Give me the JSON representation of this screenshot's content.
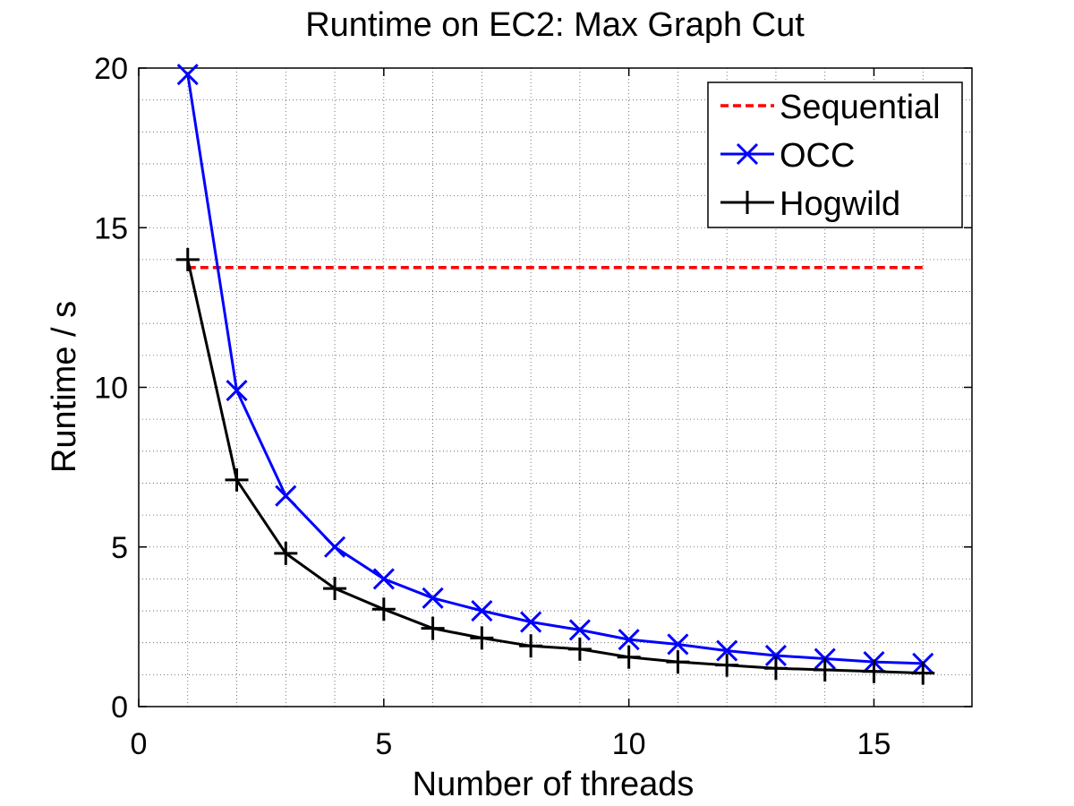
{
  "chart_data": {
    "type": "line",
    "title": "Runtime on EC2: Max Graph Cut",
    "xlabel": "Number of threads",
    "ylabel": "Runtime / s",
    "xlim": [
      0,
      17
    ],
    "ylim": [
      0,
      20
    ],
    "xticks": [
      0,
      5,
      10,
      15
    ],
    "yticks": [
      0,
      5,
      10,
      15,
      20
    ],
    "grid": "major and minor, dotted",
    "legend_position": "top-right",
    "series": [
      {
        "name": "Sequential",
        "color": "#ff0000",
        "line_style": "dashed",
        "marker": "none",
        "x": [
          1,
          16
        ],
        "values": [
          13.75,
          13.75
        ]
      },
      {
        "name": "OCC",
        "color": "#0000ff",
        "line_style": "solid",
        "marker": "x",
        "x": [
          1,
          2,
          3,
          4,
          5,
          6,
          7,
          8,
          9,
          10,
          11,
          12,
          13,
          14,
          15,
          16
        ],
        "values": [
          19.8,
          9.9,
          6.6,
          5.0,
          4.0,
          3.4,
          3.0,
          2.65,
          2.4,
          2.1,
          1.95,
          1.75,
          1.6,
          1.5,
          1.4,
          1.35
        ]
      },
      {
        "name": "Hogwild",
        "color": "#000000",
        "line_style": "solid",
        "marker": "+",
        "x": [
          1,
          2,
          3,
          4,
          5,
          6,
          7,
          8,
          9,
          10,
          11,
          12,
          13,
          14,
          15,
          16
        ],
        "values": [
          14.0,
          7.1,
          4.8,
          3.7,
          3.05,
          2.45,
          2.15,
          1.9,
          1.8,
          1.55,
          1.4,
          1.3,
          1.2,
          1.15,
          1.1,
          1.05
        ]
      }
    ]
  }
}
